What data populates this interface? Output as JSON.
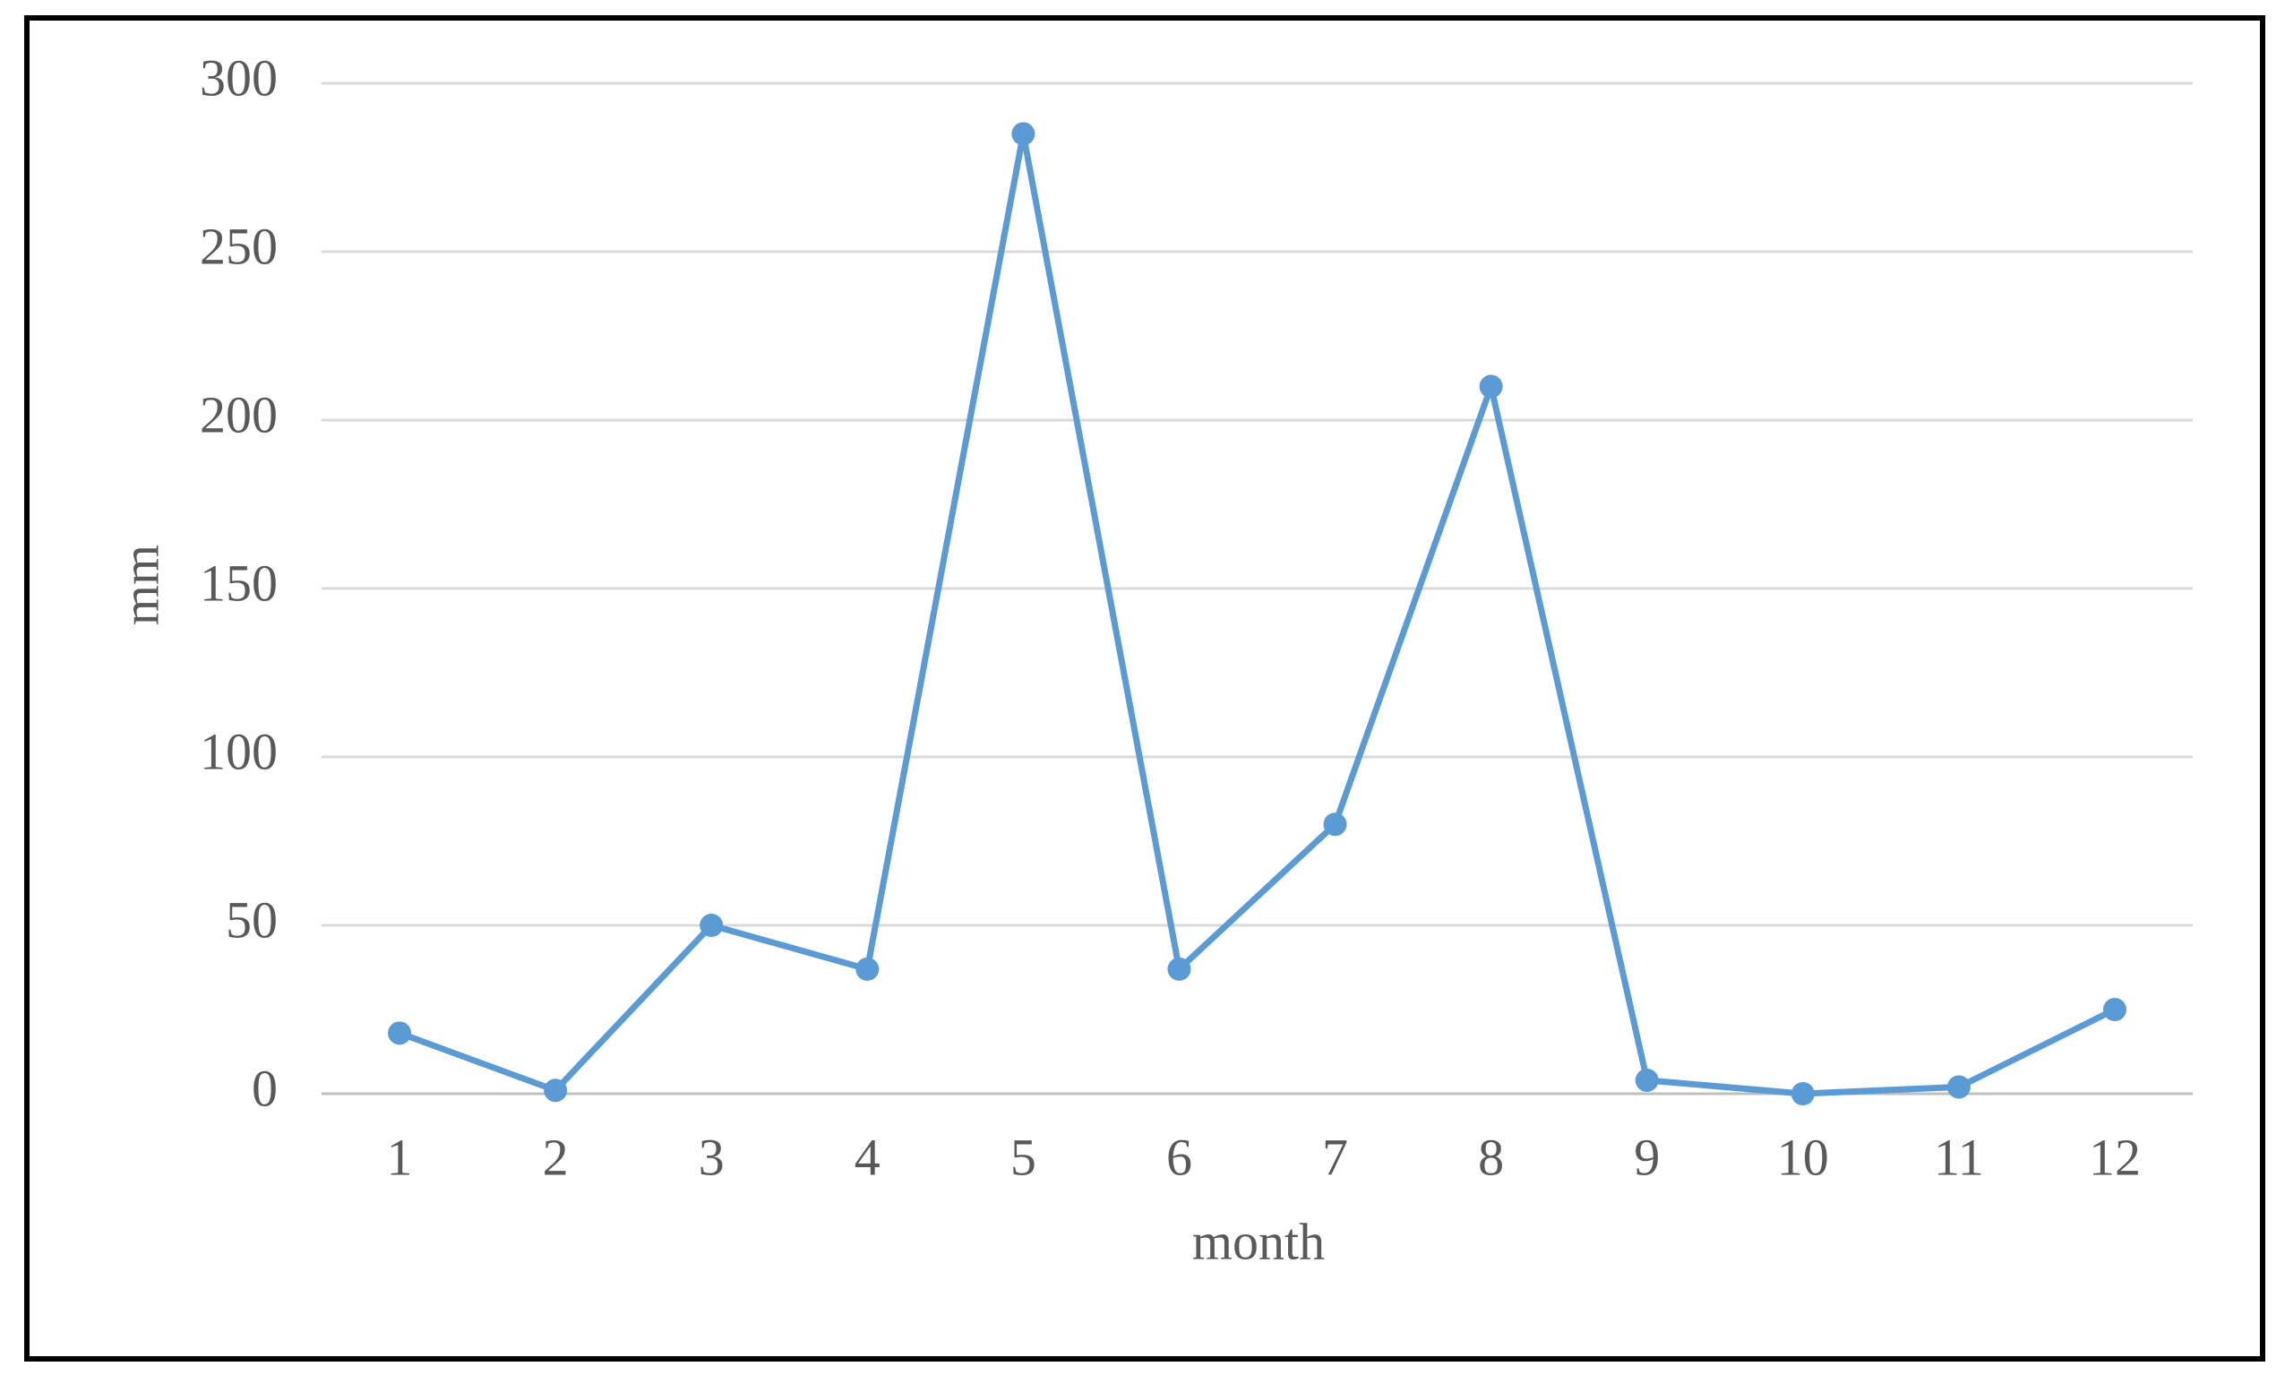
{
  "chart_data": {
    "type": "line",
    "x_label": "month",
    "y_label": "mm",
    "categories": [
      "1",
      "2",
      "3",
      "4",
      "5",
      "6",
      "7",
      "8",
      "9",
      "10",
      "11",
      "12"
    ],
    "values": [
      18,
      1,
      50,
      37,
      285,
      37,
      80,
      210,
      4,
      0,
      2,
      25
    ],
    "color": "#5b9bd5",
    "ylim": [
      0,
      300
    ],
    "yticks": [
      0,
      50,
      100,
      150,
      200,
      250,
      300
    ],
    "grid": true
  }
}
